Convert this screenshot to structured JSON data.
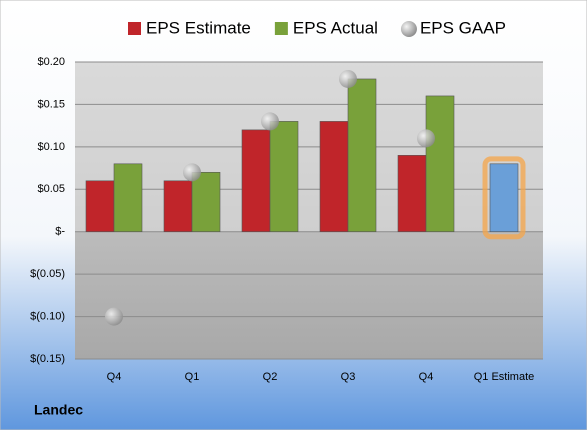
{
  "chart_data": {
    "type": "bar",
    "footer": "Landec",
    "categories": [
      "Q4",
      "Q1",
      "Q2",
      "Q3",
      "Q4",
      "Q1 Estimate"
    ],
    "series": [
      {
        "name": "EPS Estimate",
        "color": "#c0252a",
        "point_colors": [
          "#c0252a",
          "#c0252a",
          "#c0252a",
          "#c0252a",
          "#c0252a",
          "#6a9fd8"
        ],
        "values": [
          0.06,
          0.06,
          0.12,
          0.13,
          0.09,
          0.08
        ]
      },
      {
        "name": "EPS Actual",
        "color": "#79a13a",
        "values": [
          0.08,
          0.07,
          0.13,
          0.18,
          0.16,
          null
        ]
      },
      {
        "name": "EPS GAAP",
        "color": "#a0a0a0",
        "marker": "circle",
        "values": [
          -0.1,
          0.07,
          0.13,
          0.18,
          0.11,
          null
        ]
      }
    ],
    "ylim": [
      -0.15,
      0.2
    ],
    "yticks": [
      {
        "value": -0.15,
        "label": "$(0.15)"
      },
      {
        "value": -0.1,
        "label": "$(0.10)"
      },
      {
        "value": -0.05,
        "label": "$(0.05)"
      },
      {
        "value": 0,
        "label": "$-"
      },
      {
        "value": 0.05,
        "label": "$0.05"
      },
      {
        "value": 0.1,
        "label": "$0.10"
      },
      {
        "value": 0.15,
        "label": "$0.15"
      },
      {
        "value": 0.2,
        "label": "$0.20"
      }
    ],
    "grid": true,
    "legend": "top"
  }
}
